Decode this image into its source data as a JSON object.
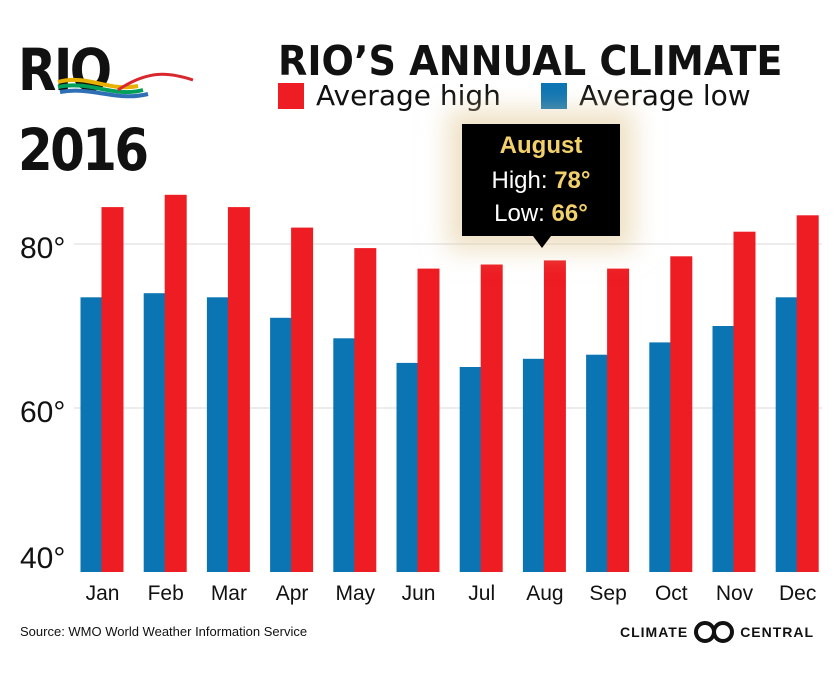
{
  "logo": {
    "text": "RIO 2016"
  },
  "title": "RIO’S ANNUAL CLIMATE",
  "legend": {
    "high_label": "Average high",
    "low_label": "Average low"
  },
  "colors": {
    "high": "#ee1d23",
    "low": "#0b74b3",
    "grid": "#d9d9d9",
    "text": "#111111",
    "tooltip_bg": "#000000",
    "tooltip_accent": "#f2d06b"
  },
  "tooltip": {
    "title": "August",
    "high_label": "High:",
    "high_value": "78°",
    "low_label": "Low:",
    "low_value": "66°"
  },
  "chart_data": {
    "type": "bar",
    "title": "RIO’S ANNUAL CLIMATE",
    "xlabel": "",
    "ylabel": "",
    "ylim": [
      40,
      90
    ],
    "yticks": [
      40,
      60,
      80
    ],
    "ytick_labels": [
      "40°",
      "60°",
      "80°"
    ],
    "categories": [
      "Jan",
      "Feb",
      "Mar",
      "Apr",
      "May",
      "Jun",
      "Jul",
      "Aug",
      "Sep",
      "Oct",
      "Nov",
      "Dec"
    ],
    "series": [
      {
        "name": "Average low",
        "values": [
          73.5,
          74,
          73.5,
          71,
          68.5,
          65.5,
          65,
          66,
          66.5,
          68,
          70,
          73.5
        ]
      },
      {
        "name": "Average high",
        "values": [
          84.5,
          86,
          84.5,
          82,
          79.5,
          77,
          77.5,
          78,
          77,
          78.5,
          81.5,
          83.5
        ]
      }
    ],
    "grid": true,
    "legend": "top"
  },
  "footer": {
    "source": "Source: WMO World Weather Information Service",
    "brand_left": "CLIMATE",
    "brand_right": "CENTRAL"
  }
}
